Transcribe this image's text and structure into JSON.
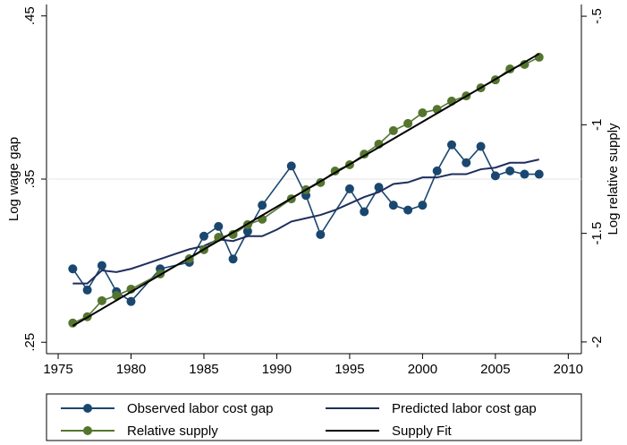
{
  "chart_data": {
    "type": "line",
    "y_label": "Log wage gap",
    "y2_label": "Log relative supply",
    "xlim": [
      1974.2,
      2010.9
    ],
    "xticks": [
      1975,
      1980,
      1985,
      1990,
      1995,
      2000,
      2005,
      2010
    ],
    "ylim": [
      0.243,
      0.457
    ],
    "yticks": [
      {
        "value": 0.45,
        "label": ".45"
      },
      {
        "value": 0.35,
        "label": ".35"
      },
      {
        "value": 0.25,
        "label": ".25"
      }
    ],
    "y2lim": [
      -2.054,
      -0.446
    ],
    "y2ticks": [
      {
        "value": -0.5,
        "label": "-.5"
      },
      -1,
      -1.5,
      -2
    ],
    "grid": true,
    "series": [
      {
        "name": "Observed labor cost gap",
        "color": "#1a476f",
        "marker": true,
        "x": [
          1976,
          1977,
          1978,
          1979,
          1980,
          1982,
          1984,
          1985,
          1986,
          1987,
          1988,
          1989,
          1991,
          1992,
          1993,
          1995,
          1996,
          1997,
          1998,
          1999,
          2000,
          2001,
          2002,
          2003,
          2004,
          2005,
          2006,
          2007,
          2008
        ],
        "values": [
          0.295,
          0.282,
          0.297,
          0.281,
          0.275,
          0.295,
          0.299,
          0.315,
          0.321,
          0.301,
          0.318,
          0.334,
          0.358,
          0.34,
          0.316,
          0.344,
          0.33,
          0.345,
          0.334,
          0.331,
          0.334,
          0.355,
          0.371,
          0.36,
          0.37,
          0.352,
          0.355,
          0.353,
          0.353
        ]
      },
      {
        "name": "Predicted labor cost gap",
        "color": "#1f2e5c",
        "marker": false,
        "x": [
          1976,
          1977,
          1978,
          1979,
          1980,
          1981,
          1982,
          1983,
          1984,
          1985,
          1986,
          1987,
          1988,
          1989,
          1990,
          1991,
          1992,
          1993,
          1994,
          1995,
          1996,
          1997,
          1998,
          1999,
          2000,
          2001,
          2002,
          2003,
          2004,
          2005,
          2006,
          2007,
          2008
        ],
        "values": [
          0.286,
          0.286,
          0.294,
          0.293,
          0.295,
          0.298,
          0.301,
          0.304,
          0.307,
          0.309,
          0.313,
          0.312,
          0.315,
          0.315,
          0.319,
          0.324,
          0.326,
          0.328,
          0.331,
          0.335,
          0.339,
          0.342,
          0.347,
          0.348,
          0.351,
          0.351,
          0.353,
          0.353,
          0.356,
          0.357,
          0.36,
          0.36,
          0.362
        ]
      },
      {
        "name": "Relative supply",
        "color": "#55752f",
        "marker": true,
        "axis": "y2",
        "x": [
          1976,
          1977,
          1978,
          1979,
          1980,
          1982,
          1984,
          1985,
          1986,
          1987,
          1988,
          1989,
          1991,
          1992,
          1993,
          1994,
          1995,
          1996,
          1997,
          1998,
          1999,
          2000,
          2001,
          2002,
          2003,
          2004,
          2005,
          2006,
          2007,
          2008
        ],
        "values": [
          -1.913,
          -1.884,
          -1.81,
          -1.786,
          -1.757,
          -1.687,
          -1.617,
          -1.575,
          -1.518,
          -1.505,
          -1.46,
          -1.435,
          -1.341,
          -1.299,
          -1.266,
          -1.213,
          -1.184,
          -1.135,
          -1.089,
          -1.027,
          -0.994,
          -0.945,
          -0.929,
          -0.891,
          -0.867,
          -0.83,
          -0.793,
          -0.743,
          -0.722,
          -0.689
        ]
      },
      {
        "name": "Supply Fit",
        "color": "#000000",
        "marker": false,
        "axis": "y2",
        "x": [
          1976,
          2008
        ],
        "values": [
          -1.926,
          -0.673
        ]
      }
    ]
  }
}
